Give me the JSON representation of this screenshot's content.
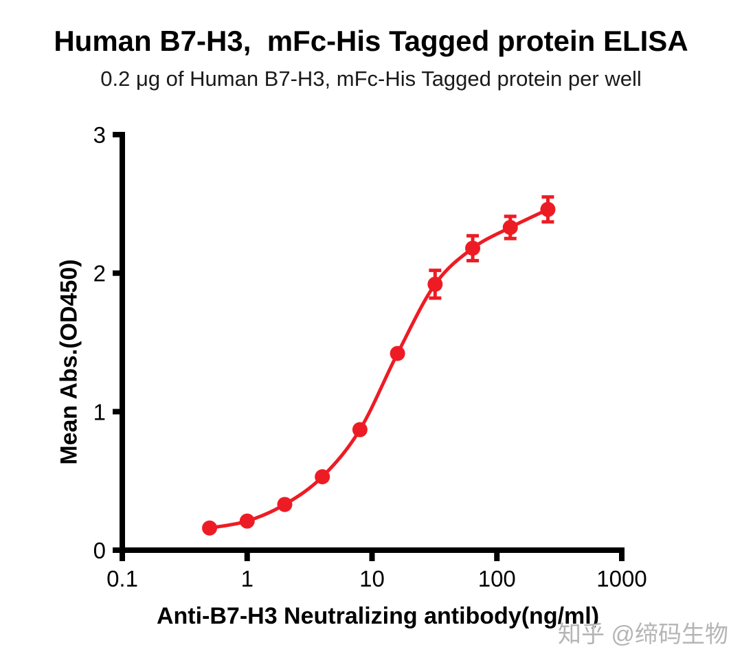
{
  "watermark": {
    "text": "知乎 @缔码生物"
  },
  "chart_data": {
    "type": "line",
    "title": "Human B7-H3,  mFc-His Tagged protein ELISA",
    "subtitle": "0.2 μg of Human B7-H3, mFc-His Tagged protein per well",
    "xlabel": "Anti-B7-H3 Neutralizing antibody(ng/ml)",
    "ylabel": "Mean Abs.(OD450)",
    "x_scale": "log",
    "xlim": [
      0.1,
      1000
    ],
    "ylim": [
      0,
      3
    ],
    "x_ticks": [
      "0.1",
      "1",
      "10",
      "100",
      "1000"
    ],
    "y_ticks": [
      "0",
      "1",
      "2",
      "3"
    ],
    "grid": false,
    "legend": "none",
    "colors": {
      "series": "#ED1C24",
      "axis": "#000000"
    },
    "series": [
      {
        "name": "Anti-B7-H3 Neutralizing antibody",
        "color": "#ED1C24",
        "x": [
          0.5,
          1,
          2,
          4,
          8,
          16,
          32,
          64,
          128,
          256
        ],
        "y": [
          0.16,
          0.21,
          0.33,
          0.53,
          0.87,
          1.42,
          1.92,
          2.18,
          2.33,
          2.46
        ],
        "y_err": [
          0,
          0,
          0,
          0,
          0,
          0,
          0.1,
          0.09,
          0.08,
          0.09
        ]
      }
    ]
  }
}
